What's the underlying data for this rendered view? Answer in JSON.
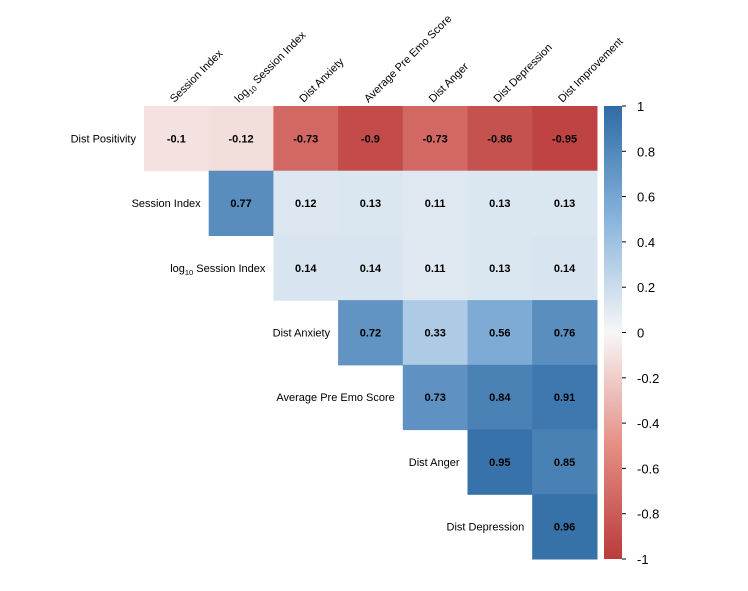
{
  "chart_data": {
    "type": "heatmap",
    "title": "",
    "subtitle": "",
    "columns": [
      {
        "label": "Session Index"
      },
      {
        "prefix": "log",
        "sub": "10",
        "label": " Session Index"
      },
      {
        "label": "Dist Anxiety"
      },
      {
        "label": "Average Pre Emo Score"
      },
      {
        "label": "Dist Anger"
      },
      {
        "label": "Dist Depression"
      },
      {
        "label": "Dist Improvement"
      }
    ],
    "rows": [
      {
        "label": "Dist Positivity",
        "values": [
          -0.1,
          -0.12,
          -0.73,
          -0.9,
          -0.73,
          -0.86,
          -0.95
        ]
      },
      {
        "label": "Session Index",
        "values": [
          null,
          0.77,
          0.12,
          0.13,
          0.11,
          0.13,
          0.13
        ]
      },
      {
        "prefix": "log",
        "sub": "10",
        "label": " Session Index",
        "values": [
          null,
          null,
          0.14,
          0.14,
          0.11,
          0.13,
          0.14
        ]
      },
      {
        "label": "Dist Anxiety",
        "values": [
          null,
          null,
          null,
          0.72,
          0.33,
          0.56,
          0.76
        ]
      },
      {
        "label": "Average Pre Emo Score",
        "values": [
          null,
          null,
          null,
          null,
          0.73,
          0.84,
          0.91
        ]
      },
      {
        "label": "Dist Anger",
        "values": [
          null,
          null,
          null,
          null,
          null,
          0.95,
          0.85
        ]
      },
      {
        "label": "Dist Depression",
        "values": [
          null,
          null,
          null,
          null,
          null,
          null,
          0.96
        ]
      }
    ],
    "colorscale": {
      "min": -1,
      "max": 1,
      "stops": [
        {
          "value": -1,
          "color": "#bb3b3c"
        },
        {
          "value": -0.5,
          "color": "#e48e84"
        },
        {
          "value": 0,
          "color": "#f7f7f7"
        },
        {
          "value": 0.5,
          "color": "#88b4dc"
        },
        {
          "value": 1,
          "color": "#2f6ba4"
        }
      ],
      "ticks": [
        "1",
        "0.8",
        "0.6",
        "0.4",
        "0.2",
        "0",
        "-0.2",
        "-0.4",
        "-0.6",
        "-0.8",
        "-1"
      ]
    }
  }
}
